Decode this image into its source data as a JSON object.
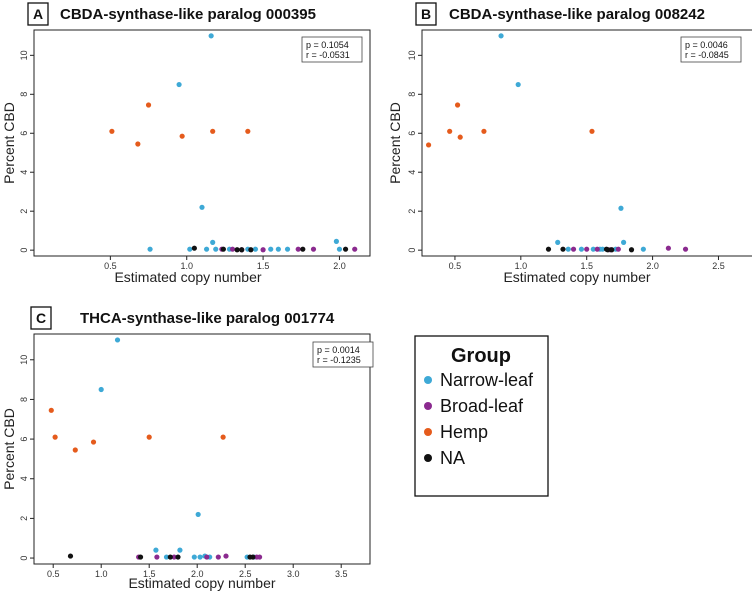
{
  "chart_data": [
    {
      "type": "scatter",
      "panel_label": "A",
      "title": "CBDA-synthase-like paralog 000395",
      "xlabel": "Estimated copy number",
      "ylabel": "Percent CBD",
      "xlim": [
        0.0,
        2.2
      ],
      "ylim": [
        -0.3,
        11.3
      ],
      "x_ticks": [
        0.5,
        1.0,
        1.5,
        2.0
      ],
      "y_ticks": [
        0,
        2,
        4,
        6,
        8,
        10
      ],
      "stats": {
        "p": "p = 0.1054",
        "r": "r = -0.0531"
      },
      "series": [
        {
          "name": "Narrow-leaf",
          "color": "#3ea9d6",
          "points": [
            [
              0.76,
              0.05
            ],
            [
              0.95,
              8.5
            ],
            [
              1.02,
              0.05
            ],
            [
              1.1,
              2.2
            ],
            [
              1.13,
              0.05
            ],
            [
              1.16,
              11.0
            ],
            [
              1.17,
              0.4
            ],
            [
              1.19,
              0.05
            ],
            [
              1.28,
              0.05
            ],
            [
              1.4,
              0.05
            ],
            [
              1.45,
              0.05
            ],
            [
              1.55,
              0.05
            ],
            [
              1.6,
              0.05
            ],
            [
              1.66,
              0.05
            ],
            [
              1.98,
              0.45
            ],
            [
              2.0,
              0.05
            ]
          ]
        },
        {
          "name": "Broad-leaf",
          "color": "#8b2a8f",
          "points": [
            [
              1.23,
              0.05
            ],
            [
              1.3,
              0.05
            ],
            [
              1.36,
              0.02
            ],
            [
              1.5,
              0.02
            ],
            [
              1.73,
              0.05
            ],
            [
              1.83,
              0.05
            ],
            [
              2.1,
              0.05
            ]
          ]
        },
        {
          "name": "Hemp",
          "color": "#e55b1c",
          "points": [
            [
              0.51,
              6.1
            ],
            [
              0.68,
              5.45
            ],
            [
              0.75,
              7.45
            ],
            [
              0.97,
              5.85
            ],
            [
              1.17,
              6.1
            ],
            [
              1.4,
              6.1
            ]
          ]
        },
        {
          "name": "NA",
          "color": "#111111",
          "points": [
            [
              1.05,
              0.1
            ],
            [
              1.24,
              0.05
            ],
            [
              1.33,
              0.02
            ],
            [
              1.36,
              0.02
            ],
            [
              1.42,
              0.02
            ],
            [
              1.76,
              0.05
            ],
            [
              2.04,
              0.05
            ]
          ]
        }
      ]
    },
    {
      "type": "scatter",
      "panel_label": "B",
      "title": "CBDA-synthase-like paralog 008242",
      "xlabel": "Estimated copy number",
      "ylabel": "Percent CBD",
      "xlim": [
        0.25,
        2.8
      ],
      "ylim": [
        -0.3,
        11.3
      ],
      "x_ticks": [
        0.5,
        1.0,
        1.5,
        2.0,
        2.5
      ],
      "y_ticks": [
        0,
        2,
        4,
        6,
        8,
        10
      ],
      "stats": {
        "p": "p = 0.0046",
        "r": "r = -0.0845"
      },
      "series": [
        {
          "name": "Narrow-leaf",
          "color": "#3ea9d6",
          "points": [
            [
              0.85,
              11.0
            ],
            [
              0.98,
              8.5
            ],
            [
              1.28,
              0.4
            ],
            [
              1.36,
              0.05
            ],
            [
              1.46,
              0.05
            ],
            [
              1.55,
              0.05
            ],
            [
              1.62,
              0.05
            ],
            [
              1.72,
              0.05
            ],
            [
              1.76,
              2.15
            ],
            [
              1.78,
              0.4
            ],
            [
              1.93,
              0.05
            ],
            [
              1.6,
              0.05
            ]
          ]
        },
        {
          "name": "Broad-leaf",
          "color": "#8b2a8f",
          "points": [
            [
              1.4,
              0.05
            ],
            [
              1.5,
              0.05
            ],
            [
              1.58,
              0.05
            ],
            [
              1.68,
              0.02
            ],
            [
              1.74,
              0.05
            ],
            [
              2.12,
              0.1
            ],
            [
              2.25,
              0.05
            ]
          ]
        },
        {
          "name": "Hemp",
          "color": "#e55b1c",
          "points": [
            [
              0.3,
              5.4
            ],
            [
              0.46,
              6.1
            ],
            [
              0.52,
              7.45
            ],
            [
              0.54,
              5.8
            ],
            [
              0.72,
              6.1
            ],
            [
              1.54,
              6.1
            ]
          ]
        },
        {
          "name": "NA",
          "color": "#111111",
          "points": [
            [
              1.21,
              0.05
            ],
            [
              1.32,
              0.05
            ],
            [
              1.65,
              0.05
            ],
            [
              1.66,
              0.02
            ],
            [
              1.69,
              0.02
            ],
            [
              1.84,
              0.02
            ]
          ]
        }
      ]
    },
    {
      "type": "scatter",
      "panel_label": "C",
      "title": "THCA-synthase-like paralog 001774",
      "xlabel": "Estimated copy number",
      "ylabel": "Percent CBD",
      "xlim": [
        0.3,
        3.8
      ],
      "ylim": [
        -0.3,
        11.3
      ],
      "x_ticks": [
        0.5,
        1.0,
        1.5,
        2.0,
        2.5,
        3.0,
        3.5
      ],
      "y_ticks": [
        0,
        2,
        4,
        6,
        8,
        10
      ],
      "stats": {
        "p": "p = 0.0014",
        "r": "r = -0.1235"
      },
      "series": [
        {
          "name": "Narrow-leaf",
          "color": "#3ea9d6",
          "points": [
            [
              1.0,
              8.5
            ],
            [
              1.17,
              11.0
            ],
            [
              1.57,
              0.4
            ],
            [
              1.68,
              0.05
            ],
            [
              1.82,
              0.4
            ],
            [
              1.97,
              0.05
            ],
            [
              2.01,
              2.2
            ],
            [
              2.03,
              0.05
            ],
            [
              2.08,
              0.1
            ],
            [
              2.13,
              0.05
            ],
            [
              2.52,
              0.05
            ],
            [
              2.59,
              0.05
            ]
          ]
        },
        {
          "name": "Broad-leaf",
          "color": "#8b2a8f",
          "points": [
            [
              1.39,
              0.05
            ],
            [
              1.58,
              0.05
            ],
            [
              1.76,
              0.05
            ],
            [
              2.1,
              0.05
            ],
            [
              2.22,
              0.05
            ],
            [
              2.3,
              0.1
            ],
            [
              2.62,
              0.05
            ],
            [
              2.65,
              0.05
            ]
          ]
        },
        {
          "name": "Hemp",
          "color": "#e55b1c",
          "points": [
            [
              0.48,
              7.45
            ],
            [
              0.52,
              6.1
            ],
            [
              0.73,
              5.45
            ],
            [
              0.92,
              5.85
            ],
            [
              1.5,
              6.1
            ],
            [
              2.27,
              6.1
            ]
          ]
        },
        {
          "name": "NA",
          "color": "#111111",
          "points": [
            [
              0.68,
              0.1
            ],
            [
              1.41,
              0.05
            ],
            [
              1.72,
              0.05
            ],
            [
              1.8,
              0.05
            ],
            [
              2.55,
              0.05
            ],
            [
              2.58,
              0.05
            ]
          ]
        }
      ]
    }
  ],
  "legend": {
    "title": "Group",
    "items": [
      {
        "label": "Narrow-leaf",
        "color": "#3ea9d6"
      },
      {
        "label": "Broad-leaf",
        "color": "#8b2a8f"
      },
      {
        "label": "Hemp",
        "color": "#e55b1c"
      },
      {
        "label": "NA",
        "color": "#111111"
      }
    ]
  }
}
